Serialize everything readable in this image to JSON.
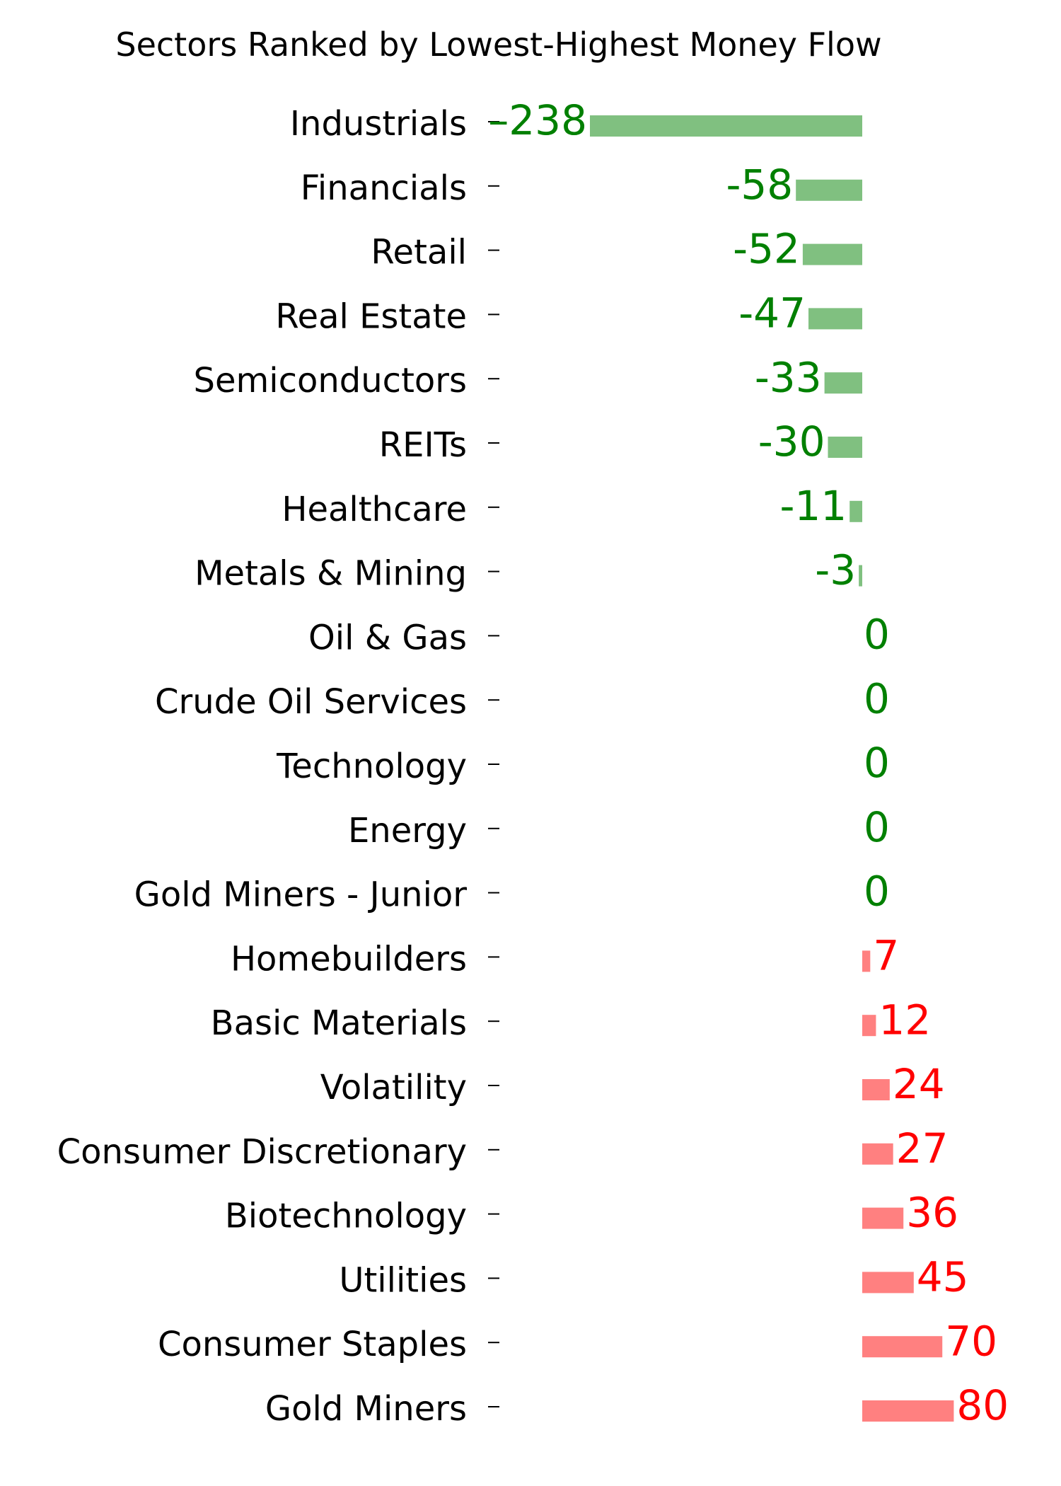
{
  "chart_data": {
    "type": "bar",
    "orientation": "horizontal",
    "title": "Sectors Ranked by Lowest-Highest Money Flow",
    "xlabel": "",
    "ylabel": "",
    "grid": false,
    "axes_visible": false,
    "categories": [
      "Industrials",
      "Financials",
      "Retail",
      "Real Estate",
      "Semiconductors",
      "REITs",
      "Healthcare",
      "Metals & Mining",
      "Oil & Gas",
      "Crude Oil Services",
      "Technology",
      "Energy",
      "Gold Miners - Junior",
      "Homebuilders",
      "Basic Materials",
      "Volatility",
      "Consumer Discretionary",
      "Biotechnology",
      "Utilities",
      "Consumer Staples",
      "Gold Miners"
    ],
    "values": [
      -238,
      -58,
      -52,
      -47,
      -33,
      -30,
      -11,
      -3,
      0,
      0,
      0,
      0,
      0,
      7,
      12,
      24,
      27,
      36,
      45,
      70,
      80
    ],
    "data_labels": [
      "–238",
      "-58",
      "-52",
      "-47",
      "-33",
      "-30",
      "-11",
      "-3",
      "0",
      "0",
      "0",
      "0",
      "0",
      "7",
      "12",
      "24",
      "27",
      "36",
      "45",
      "70",
      "80"
    ],
    "colors": {
      "negative_bar": "#80c080",
      "negative_text": "#008000",
      "positive_bar": "#ff8080",
      "positive_text": "#ff0000"
    }
  }
}
